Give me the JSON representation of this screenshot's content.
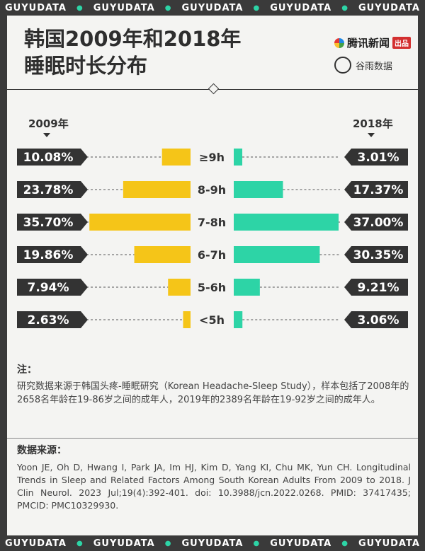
{
  "banner": {
    "text": "GUYUDATA",
    "repeat": 5
  },
  "header": {
    "title_line1": "韩国2009年和2018年",
    "title_line2": "睡眠时长分布",
    "brand_primary": "腾讯新闻",
    "brand_tag": "出品",
    "brand_secondary": "谷雨数据"
  },
  "colors": {
    "left": "#f5c518",
    "right": "#2dd4a6",
    "dark": "#333333",
    "background": "#f4f4f2",
    "frame": "#3a3a3a"
  },
  "chart_data": {
    "type": "bar",
    "title": "韩国2009年和2018年睡眠时长分布",
    "categories": [
      "≥9h",
      "8-9h",
      "7-8h",
      "6-7h",
      "5-6h",
      "<5h"
    ],
    "series": [
      {
        "name": "2009年",
        "values": [
          10.08,
          23.78,
          35.7,
          19.86,
          7.94,
          2.63
        ],
        "labels": [
          "10.08%",
          "23.78%",
          "35.70%",
          "19.86%",
          "7.94%",
          "2.63%"
        ]
      },
      {
        "name": "2018年",
        "values": [
          3.01,
          17.37,
          37.0,
          30.35,
          9.21,
          3.06
        ],
        "labels": [
          "3.01%",
          "17.37%",
          "37.00%",
          "30.35%",
          "9.21%",
          "3.06%"
        ]
      }
    ],
    "unit": "%",
    "layout": "back-to-back horizontal bars"
  },
  "notes": {
    "heading": "注：",
    "text": "研究数据来源于韩国头疼-睡眠研究（Korean Headache-Sleep Study），样本包括了2008年的2658名年龄在19-86岁之间的成年人，2019年的2389名年龄在19-92岁之间的成年人。"
  },
  "source": {
    "heading": "数据来源：",
    "text": "Yoon JE, Oh D, Hwang I, Park JA, Im HJ, Kim D, Yang KI, Chu MK, Yun CH. Longitudinal Trends in Sleep and Related Factors Among South Korean Adults From 2009 to 2018. J Clin Neurol. 2023 Jul;19(4):392-401. doi: 10.3988/jcn.2022.0268. PMID: 37417435; PMCID: PMC10329930."
  }
}
